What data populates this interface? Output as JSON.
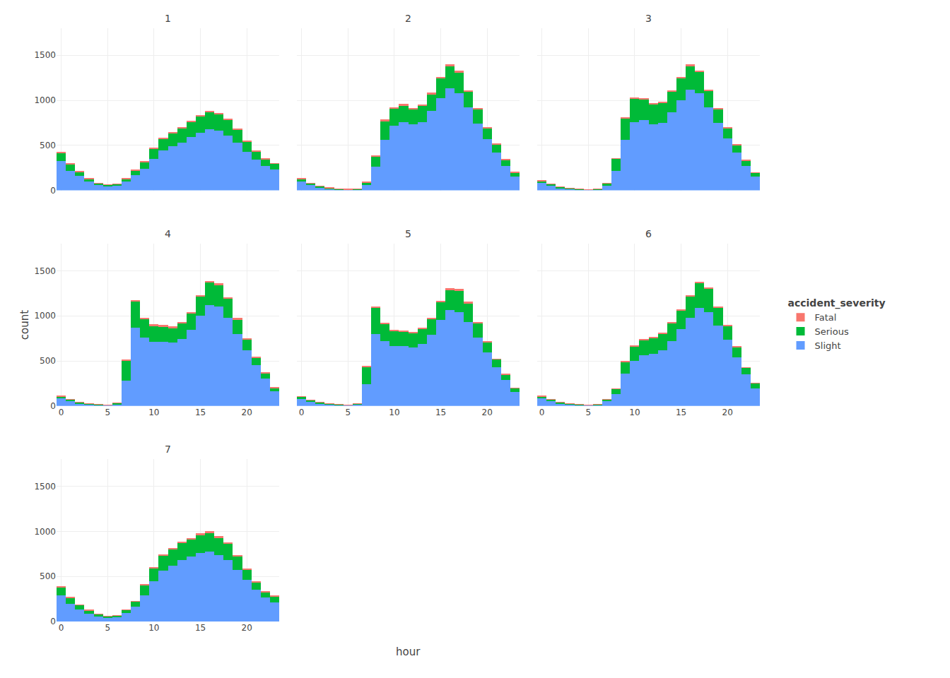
{
  "chart_data": [
    {
      "type": "bar",
      "title": "1",
      "stacked": true,
      "grid": true,
      "tick_labels": "y",
      "legend": "right",
      "legend_title": "accident_severity",
      "x": [
        0,
        1,
        2,
        3,
        4,
        5,
        6,
        7,
        8,
        9,
        10,
        11,
        12,
        13,
        14,
        15,
        16,
        17,
        18,
        19,
        20,
        21,
        22,
        23
      ],
      "xlim": [
        -0.5,
        23.5
      ],
      "xticks": [
        0,
        5,
        10,
        15,
        20
      ],
      "ylim": [
        0,
        1800
      ],
      "yticks": [
        0,
        500,
        1000,
        1500
      ],
      "series": [
        {
          "name": "Slight",
          "color": "#619CFF",
          "values": [
            330,
            220,
            160,
            100,
            60,
            45,
            55,
            100,
            170,
            240,
            350,
            440,
            490,
            530,
            590,
            640,
            680,
            660,
            610,
            530,
            430,
            340,
            270,
            230
          ]
        },
        {
          "name": "Serious",
          "color": "#00BA38",
          "values": [
            90,
            70,
            45,
            30,
            20,
            15,
            18,
            30,
            50,
            75,
            110,
            135,
            145,
            160,
            170,
            180,
            185,
            180,
            170,
            145,
            115,
            90,
            75,
            65
          ]
        },
        {
          "name": "Fatal",
          "color": "#F8766D",
          "values": [
            10,
            8,
            5,
            4,
            3,
            2,
            2,
            4,
            6,
            8,
            10,
            10,
            13,
            13,
            14,
            16,
            17,
            17,
            16,
            14,
            11,
            8,
            7,
            7
          ]
        }
      ]
    },
    {
      "type": "bar",
      "title": "2",
      "stacked": true,
      "grid": true,
      "tick_labels": false,
      "x": [
        0,
        1,
        2,
        3,
        4,
        5,
        6,
        7,
        8,
        9,
        10,
        11,
        12,
        13,
        14,
        15,
        16,
        17,
        18,
        19,
        20,
        21,
        22,
        23
      ],
      "xlim": [
        -0.5,
        23.5
      ],
      "xticks": [
        0,
        5,
        10,
        15,
        20
      ],
      "ylim": [
        0,
        1800
      ],
      "yticks": [
        0,
        500,
        1000,
        1500
      ],
      "series": [
        {
          "name": "Slight",
          "color": "#619CFF",
          "values": [
            100,
            60,
            35,
            20,
            12,
            8,
            12,
            60,
            260,
            560,
            720,
            760,
            730,
            760,
            880,
            1020,
            1130,
            1080,
            920,
            740,
            570,
            420,
            270,
            155
          ]
        },
        {
          "name": "Serious",
          "color": "#00BA38",
          "values": [
            30,
            20,
            13,
            8,
            5,
            4,
            5,
            30,
            120,
            210,
            190,
            185,
            170,
            180,
            190,
            220,
            250,
            230,
            180,
            160,
            120,
            90,
            70,
            45
          ]
        },
        {
          "name": "Fatal",
          "color": "#F8766D",
          "values": [
            3,
            2,
            1,
            1,
            1,
            1,
            1,
            2,
            8,
            15,
            13,
            15,
            15,
            16,
            14,
            17,
            18,
            17,
            14,
            13,
            9,
            8,
            6,
            4
          ]
        }
      ]
    },
    {
      "type": "bar",
      "title": "3",
      "stacked": true,
      "grid": true,
      "tick_labels": false,
      "x": [
        0,
        1,
        2,
        3,
        4,
        5,
        6,
        7,
        8,
        9,
        10,
        11,
        12,
        13,
        14,
        15,
        16,
        17,
        18,
        19,
        20,
        21,
        22,
        23
      ],
      "xlim": [
        -0.5,
        23.5
      ],
      "xticks": [
        0,
        5,
        10,
        15,
        20
      ],
      "ylim": [
        0,
        1800
      ],
      "yticks": [
        0,
        500,
        1000,
        1500
      ],
      "series": [
        {
          "name": "Slight",
          "color": "#619CFF",
          "values": [
            80,
            50,
            28,
            16,
            10,
            7,
            10,
            50,
            220,
            560,
            760,
            780,
            730,
            750,
            870,
            1000,
            1120,
            1080,
            920,
            750,
            580,
            420,
            270,
            150
          ]
        },
        {
          "name": "Serious",
          "color": "#00BA38",
          "values": [
            25,
            18,
            12,
            7,
            5,
            4,
            5,
            30,
            130,
            240,
            260,
            230,
            220,
            220,
            225,
            240,
            260,
            235,
            185,
            150,
            108,
            80,
            60,
            43
          ]
        },
        {
          "name": "Fatal",
          "color": "#F8766D",
          "values": [
            3,
            2,
            1,
            1,
            1,
            1,
            1,
            2,
            7,
            16,
            15,
            14,
            16,
            15,
            14,
            16,
            18,
            15,
            13,
            12,
            9,
            8,
            6,
            3
          ]
        }
      ]
    },
    {
      "type": "bar",
      "title": "4",
      "stacked": true,
      "grid": true,
      "ylabel": "count",
      "x": [
        0,
        1,
        2,
        3,
        4,
        5,
        6,
        7,
        8,
        9,
        10,
        11,
        12,
        13,
        14,
        15,
        16,
        17,
        18,
        19,
        20,
        21,
        22,
        23
      ],
      "xlim": [
        -0.5,
        23.5
      ],
      "xticks": [
        0,
        5,
        10,
        15,
        20
      ],
      "ylim": [
        0,
        1800
      ],
      "yticks": [
        0,
        500,
        1000,
        1500
      ],
      "series": [
        {
          "name": "Slight",
          "color": "#619CFF",
          "values": [
            80,
            50,
            28,
            16,
            10,
            7,
            20,
            280,
            870,
            760,
            710,
            710,
            700,
            740,
            840,
            1000,
            1120,
            1100,
            980,
            800,
            620,
            450,
            300,
            165
          ]
        },
        {
          "name": "Serious",
          "color": "#00BA38",
          "values": [
            25,
            18,
            12,
            7,
            5,
            4,
            12,
            220,
            290,
            200,
            180,
            170,
            165,
            175,
            180,
            210,
            250,
            245,
            210,
            160,
            120,
            85,
            60,
            35
          ]
        },
        {
          "name": "Fatal",
          "color": "#F8766D",
          "values": [
            3,
            2,
            1,
            1,
            1,
            1,
            1,
            10,
            15,
            16,
            14,
            15,
            14,
            14,
            16,
            16,
            16,
            15,
            15,
            13,
            10,
            7,
            6,
            4
          ]
        }
      ]
    },
    {
      "type": "bar",
      "title": "5",
      "stacked": true,
      "grid": true,
      "tick_labels": "x",
      "x": [
        0,
        1,
        2,
        3,
        4,
        5,
        6,
        7,
        8,
        9,
        10,
        11,
        12,
        13,
        14,
        15,
        16,
        17,
        18,
        19,
        20,
        21,
        22,
        23
      ],
      "xlim": [
        -0.5,
        23.5
      ],
      "xticks": [
        0,
        5,
        10,
        15,
        20
      ],
      "ylim": [
        0,
        1800
      ],
      "yticks": [
        0,
        500,
        1000,
        1500
      ],
      "series": [
        {
          "name": "Slight",
          "color": "#619CFF",
          "values": [
            75,
            45,
            25,
            14,
            9,
            6,
            15,
            240,
            800,
            720,
            660,
            660,
            650,
            690,
            790,
            950,
            1060,
            1040,
            930,
            760,
            590,
            430,
            285,
            155
          ]
        },
        {
          "name": "Serious",
          "color": "#00BA38",
          "values": [
            25,
            17,
            12,
            7,
            5,
            4,
            10,
            190,
            290,
            190,
            170,
            165,
            160,
            165,
            175,
            205,
            230,
            240,
            210,
            160,
            120,
            85,
            60,
            40
          ]
        },
        {
          "name": "Fatal",
          "color": "#F8766D",
          "values": [
            3,
            2,
            1,
            1,
            1,
            1,
            1,
            8,
            14,
            15,
            13,
            13,
            13,
            13,
            13,
            13,
            15,
            15,
            14,
            12,
            9,
            7,
            5,
            4
          ]
        }
      ]
    },
    {
      "type": "bar",
      "title": "6",
      "stacked": true,
      "grid": true,
      "tick_labels": "x",
      "x": [
        0,
        1,
        2,
        3,
        4,
        5,
        6,
        7,
        8,
        9,
        10,
        11,
        12,
        13,
        14,
        15,
        16,
        17,
        18,
        19,
        20,
        21,
        22,
        23
      ],
      "xlim": [
        -0.5,
        23.5
      ],
      "xticks": [
        0,
        5,
        10,
        15,
        20
      ],
      "ylim": [
        0,
        1800
      ],
      "yticks": [
        0,
        500,
        1000,
        1500
      ],
      "series": [
        {
          "name": "Slight",
          "color": "#619CFF",
          "values": [
            80,
            50,
            28,
            16,
            10,
            7,
            10,
            50,
            130,
            360,
            500,
            560,
            580,
            620,
            720,
            850,
            980,
            1090,
            1040,
            890,
            730,
            540,
            350,
            195
          ]
        },
        {
          "name": "Serious",
          "color": "#00BA38",
          "values": [
            25,
            18,
            12,
            7,
            5,
            4,
            6,
            20,
            55,
            130,
            160,
            170,
            170,
            180,
            200,
            210,
            235,
            275,
            260,
            200,
            160,
            115,
            72,
            53
          ]
        },
        {
          "name": "Fatal",
          "color": "#F8766D",
          "values": [
            3,
            2,
            1,
            1,
            1,
            1,
            1,
            2,
            3,
            8,
            10,
            10,
            11,
            11,
            12,
            12,
            13,
            15,
            14,
            12,
            10,
            8,
            6,
            4
          ]
        }
      ]
    },
    {
      "type": "bar",
      "title": "7",
      "stacked": true,
      "grid": true,
      "xlabel": "hour",
      "x": [
        0,
        1,
        2,
        3,
        4,
        5,
        6,
        7,
        8,
        9,
        10,
        11,
        12,
        13,
        14,
        15,
        16,
        17,
        18,
        19,
        20,
        21,
        22,
        23
      ],
      "xlim": [
        -0.5,
        23.5
      ],
      "xticks": [
        0,
        5,
        10,
        15,
        20
      ],
      "ylim": [
        0,
        1800
      ],
      "yticks": [
        0,
        500,
        1000,
        1500
      ],
      "series": [
        {
          "name": "Slight",
          "color": "#619CFF",
          "values": [
            290,
            195,
            130,
            85,
            55,
            38,
            45,
            90,
            160,
            290,
            440,
            560,
            620,
            680,
            720,
            760,
            770,
            730,
            680,
            570,
            460,
            350,
            265,
            210
          ]
        },
        {
          "name": "Serious",
          "color": "#00BA38",
          "values": [
            90,
            63,
            48,
            35,
            25,
            18,
            20,
            35,
            60,
            110,
            150,
            170,
            180,
            190,
            190,
            200,
            210,
            195,
            180,
            150,
            110,
            80,
            60,
            65
          ]
        },
        {
          "name": "Fatal",
          "color": "#F8766D",
          "values": [
            9,
            6,
            4,
            3,
            2,
            2,
            2,
            3,
            4,
            8,
            11,
            13,
            13,
            14,
            15,
            15,
            17,
            17,
            16,
            13,
            10,
            8,
            6,
            6
          ]
        }
      ]
    }
  ]
}
